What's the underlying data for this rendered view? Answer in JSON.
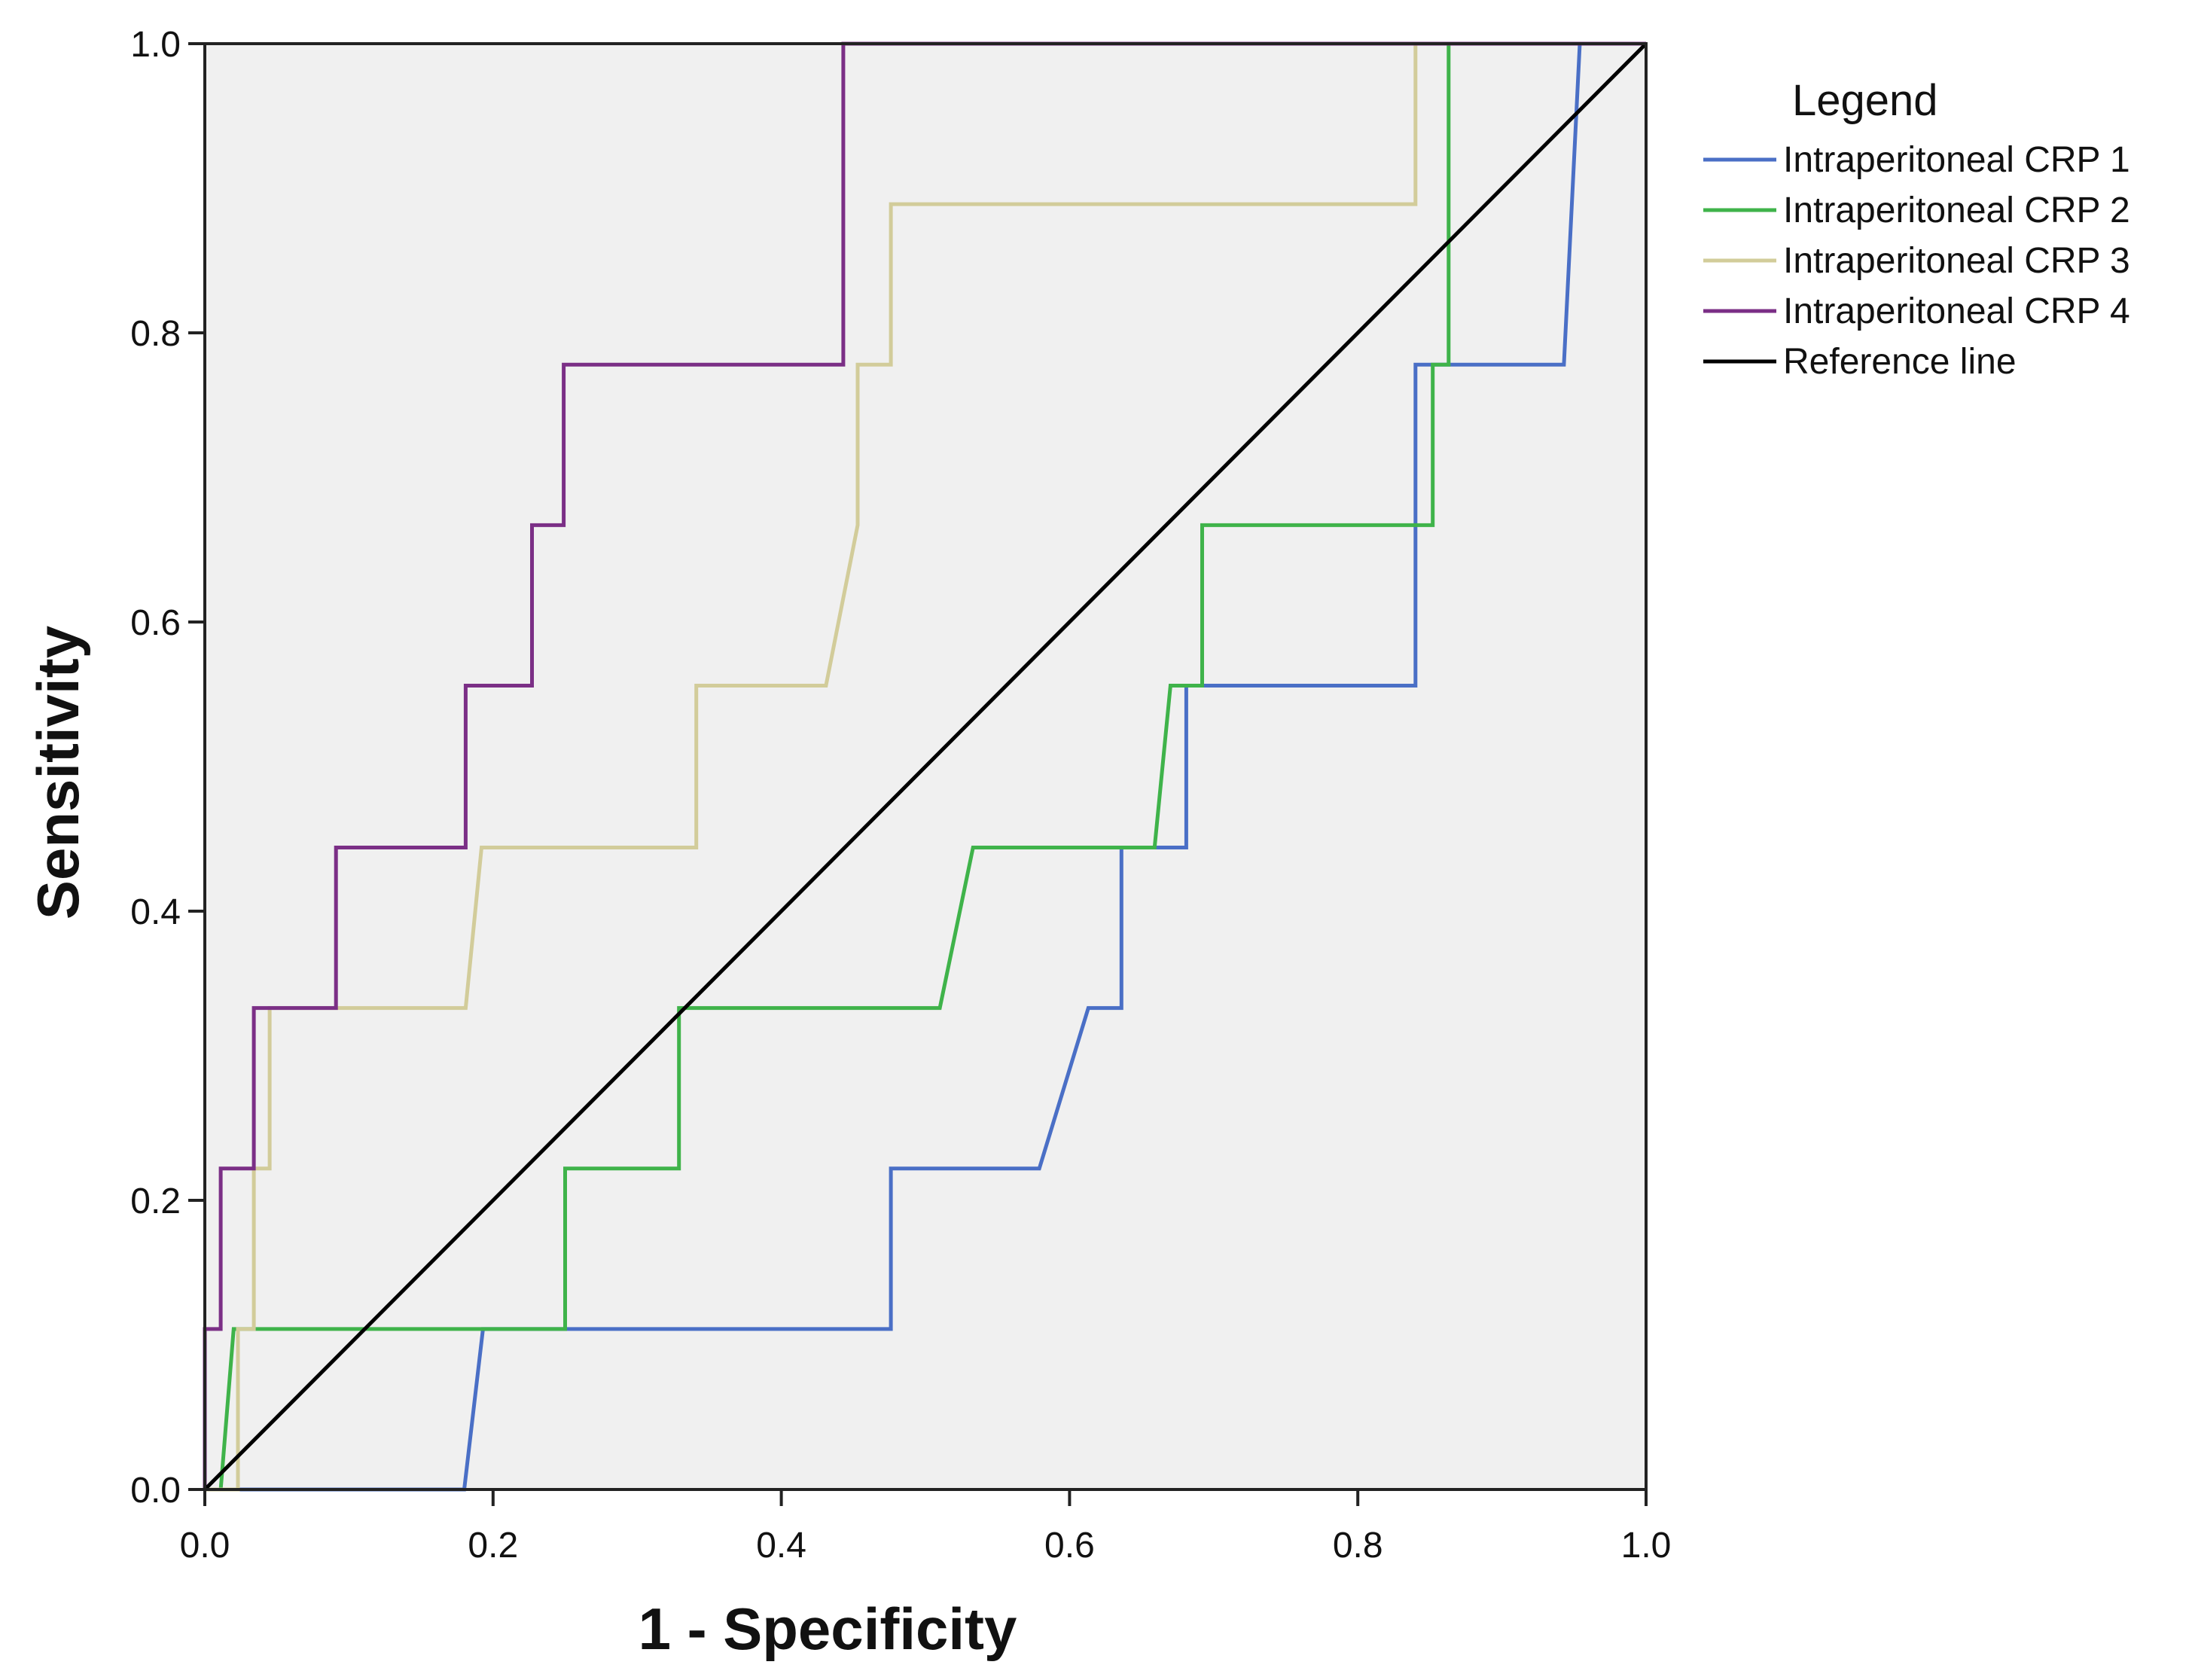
{
  "chart_data": {
    "type": "line",
    "title": "",
    "xlabel": "1 - Specificity",
    "ylabel": "Sensitivity",
    "xlim": [
      0,
      1
    ],
    "ylim": [
      0,
      1
    ],
    "xticks": [
      "0.0",
      "0.2",
      "0.4",
      "0.6",
      "0.8",
      "1.0"
    ],
    "yticks": [
      "0.0",
      "0.2",
      "0.4",
      "0.6",
      "0.8",
      "1.0"
    ],
    "legend_title": "Legend",
    "legend_position": "right",
    "plot_background": "#f0f0f0",
    "series": [
      {
        "name": "Intraperitoneal CRP 1",
        "color": "#4a6fc6",
        "x": [
          0,
          0.18,
          0.193,
          0.476,
          0.476,
          0.579,
          0.613,
          0.636,
          0.636,
          0.681,
          0.681,
          0.84,
          0.84,
          0.943,
          0.954
        ],
        "y": [
          0,
          0,
          0.111,
          0.111,
          0.222,
          0.222,
          0.333,
          0.333,
          0.444,
          0.444,
          0.556,
          0.556,
          0.778,
          0.778,
          1.0
        ]
      },
      {
        "name": "Intraperitoneal CRP 2",
        "color": "#3fb34a",
        "x": [
          0,
          0.011,
          0.02,
          0.25,
          0.25,
          0.329,
          0.329,
          0.51,
          0.533,
          0.659,
          0.67,
          0.692,
          0.692,
          0.852,
          0.852,
          0.863,
          0.863
        ],
        "y": [
          0,
          0,
          0.111,
          0.111,
          0.222,
          0.222,
          0.333,
          0.333,
          0.444,
          0.444,
          0.556,
          0.556,
          0.667,
          0.667,
          0.778,
          0.778,
          1.0
        ]
      },
      {
        "name": "Intraperitoneal CRP 3",
        "color": "#d2cc9a",
        "x": [
          0,
          0.023,
          0.023,
          0.034,
          0.034,
          0.045,
          0.045,
          0.181,
          0.192,
          0.341,
          0.341,
          0.431,
          0.453,
          0.453,
          0.476,
          0.476,
          0.84,
          0.84,
          1.0
        ],
        "y": [
          0,
          0,
          0.111,
          0.111,
          0.222,
          0.222,
          0.333,
          0.333,
          0.444,
          0.444,
          0.556,
          0.556,
          0.667,
          0.778,
          0.778,
          0.889,
          0.889,
          1.0,
          1.0
        ]
      },
      {
        "name": "Intraperitoneal CRP 4",
        "color": "#7b2f86",
        "x": [
          0,
          0,
          0.011,
          0.011,
          0.034,
          0.034,
          0.091,
          0.091,
          0.181,
          0.181,
          0.227,
          0.227,
          0.249,
          0.249,
          0.443,
          0.443,
          1.0
        ],
        "y": [
          0,
          0.111,
          0.111,
          0.222,
          0.222,
          0.333,
          0.333,
          0.444,
          0.444,
          0.556,
          0.556,
          0.667,
          0.667,
          0.778,
          0.778,
          1.0,
          1.0
        ]
      },
      {
        "name": "Reference line",
        "color": "#000000",
        "x": [
          0,
          1
        ],
        "y": [
          0,
          1
        ]
      }
    ]
  }
}
